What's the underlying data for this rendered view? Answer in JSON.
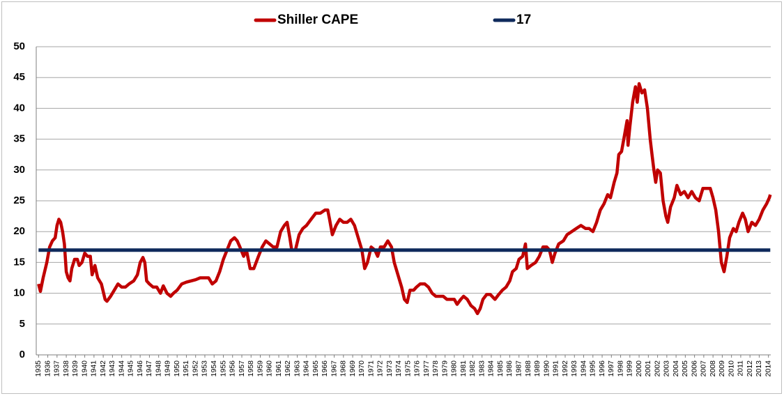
{
  "chart_data": {
    "type": "line",
    "series": [
      {
        "name": "Shiller CAPE",
        "color": "#c00000",
        "x": [
          1935.0,
          1935.2,
          1935.5,
          1935.9,
          1936.2,
          1936.5,
          1936.8,
          1937.0,
          1937.2,
          1937.4,
          1937.6,
          1937.8,
          1938.0,
          1938.2,
          1938.4,
          1938.6,
          1938.9,
          1939.2,
          1939.4,
          1939.7,
          1940.0,
          1940.3,
          1940.6,
          1940.8,
          1941.1,
          1941.4,
          1941.8,
          1942.2,
          1942.4,
          1942.8,
          1943.2,
          1943.6,
          1944.0,
          1944.4,
          1944.8,
          1945.3,
          1945.7,
          1946.0,
          1946.3,
          1946.5,
          1946.7,
          1947.0,
          1947.4,
          1947.8,
          1948.2,
          1948.5,
          1948.9,
          1949.3,
          1949.6,
          1950.0,
          1950.5,
          1951.0,
          1951.5,
          1952.0,
          1952.5,
          1953.0,
          1953.4,
          1953.8,
          1954.2,
          1954.6,
          1955.0,
          1955.4,
          1955.8,
          1956.2,
          1956.5,
          1956.8,
          1957.2,
          1957.5,
          1957.9,
          1958.3,
          1958.8,
          1959.2,
          1959.6,
          1960.0,
          1960.4,
          1960.8,
          1961.2,
          1961.6,
          1961.9,
          1962.2,
          1962.4,
          1962.8,
          1963.2,
          1963.6,
          1964.0,
          1964.5,
          1965.0,
          1965.5,
          1966.0,
          1966.3,
          1966.5,
          1966.8,
          1967.2,
          1967.6,
          1968.0,
          1968.4,
          1968.8,
          1969.2,
          1969.6,
          1970.0,
          1970.3,
          1970.6,
          1971.0,
          1971.4,
          1971.7,
          1972.0,
          1972.4,
          1972.8,
          1973.2,
          1973.5,
          1973.9,
          1974.3,
          1974.6,
          1974.9,
          1975.2,
          1975.6,
          1975.9,
          1976.3,
          1976.8,
          1977.2,
          1977.6,
          1978.0,
          1978.4,
          1978.8,
          1979.2,
          1979.6,
          1980.0,
          1980.3,
          1980.7,
          1981.0,
          1981.4,
          1981.8,
          1982.2,
          1982.5,
          1982.8,
          1983.1,
          1983.5,
          1983.9,
          1984.4,
          1984.8,
          1985.2,
          1985.6,
          1986.0,
          1986.3,
          1986.7,
          1987.0,
          1987.4,
          1987.7,
          1987.9,
          1988.3,
          1988.8,
          1989.2,
          1989.6,
          1990.0,
          1990.3,
          1990.6,
          1990.9,
          1991.3,
          1991.8,
          1992.2,
          1992.7,
          1993.2,
          1993.7,
          1994.2,
          1994.6,
          1995.0,
          1995.4,
          1995.8,
          1996.2,
          1996.6,
          1996.9,
          1997.3,
          1997.6,
          1997.8,
          1998.1,
          1998.4,
          1998.7,
          1998.8,
          1999.0,
          1999.3,
          1999.6,
          1999.8,
          2000.0,
          2000.3,
          2000.6,
          2000.9,
          2001.2,
          2001.4,
          2001.6,
          2001.8,
          2002.0,
          2002.3,
          2002.6,
          2002.9,
          2003.1,
          2003.4,
          2003.8,
          2004.1,
          2004.5,
          2004.9,
          2005.3,
          2005.7,
          2006.1,
          2006.5,
          2006.9,
          2007.3,
          2007.7,
          2008.0,
          2008.3,
          2008.6,
          2008.9,
          2009.2,
          2009.5,
          2009.8,
          2010.2,
          2010.5,
          2010.8,
          2011.2,
          2011.5,
          2011.8,
          2012.2,
          2012.6,
          2013.0,
          2013.4,
          2013.8,
          2014.1,
          2014.2
        ],
        "values": [
          11.5,
          10.3,
          12.5,
          15,
          17.5,
          18.5,
          19,
          21,
          22,
          21.5,
          20,
          18,
          13.5,
          12.5,
          12,
          14,
          15.5,
          15.5,
          14.5,
          15,
          16.5,
          16,
          16,
          13,
          14.5,
          12.5,
          11.5,
          9,
          8.7,
          9.5,
          10.5,
          11.5,
          11,
          11,
          11.5,
          12,
          13,
          15,
          15.8,
          15,
          12,
          11.5,
          11,
          11,
          10,
          11.2,
          10,
          9.5,
          10,
          10.5,
          11.5,
          11.8,
          12,
          12.2,
          12.5,
          12.5,
          12.5,
          11.5,
          12,
          13.5,
          15.5,
          17,
          18.5,
          19,
          18.5,
          17.5,
          16,
          17,
          14,
          14,
          16,
          17.5,
          18.5,
          18,
          17.5,
          17.5,
          20,
          21,
          21.5,
          19,
          17,
          17,
          19.5,
          20.5,
          21,
          22,
          23,
          23,
          23.5,
          23.5,
          22,
          19.5,
          21,
          22,
          21.5,
          21.5,
          22,
          21,
          19,
          17,
          14,
          15,
          17.5,
          17,
          16,
          17.5,
          17.5,
          18.5,
          17.5,
          15,
          13,
          11,
          9,
          8.5,
          10.5,
          10.5,
          11,
          11.5,
          11.5,
          11,
          10,
          9.5,
          9.5,
          9.5,
          9,
          9,
          9,
          8.2,
          9,
          9.5,
          9,
          8,
          7.5,
          6.7,
          7.5,
          9,
          9.8,
          9.8,
          9,
          9.8,
          10.5,
          11,
          12,
          13.5,
          14,
          15.5,
          16,
          18,
          14,
          14.5,
          15,
          16,
          17.5,
          17.5,
          17,
          15,
          16.5,
          18,
          18.5,
          19.5,
          20,
          20.5,
          21,
          20.5,
          20.5,
          20,
          21.5,
          23.5,
          24.5,
          26,
          25.5,
          28,
          29.5,
          32.5,
          33,
          35.5,
          38,
          34,
          37,
          41,
          43.5,
          41,
          44,
          42.5,
          43,
          40,
          35,
          32.5,
          30,
          28,
          30,
          29.5,
          25,
          22.5,
          21.5,
          24,
          25.5,
          27.5,
          26,
          26.5,
          25.5,
          26.5,
          25.5,
          25,
          27,
          27,
          27,
          25.5,
          23.5,
          20,
          15,
          13.5,
          16,
          19,
          20.5,
          20,
          21.5,
          23,
          22,
          20,
          21.5,
          21,
          22,
          23.5,
          24.5,
          25.5,
          26
        ]
      },
      {
        "name": "17",
        "color": "#0f2a5c",
        "x": [
          1935.0,
          2014.2
        ],
        "values": [
          17,
          17
        ]
      }
    ],
    "ylim": [
      0,
      50
    ],
    "yticks": [
      0,
      5,
      10,
      15,
      20,
      25,
      30,
      35,
      40,
      45,
      50
    ],
    "xlim": [
      1934.75,
      2014.25
    ],
    "xticks": [
      1935,
      1936,
      1937,
      1938,
      1939,
      1940,
      1941,
      1942,
      1943,
      1944,
      1945,
      1946,
      1947,
      1948,
      1949,
      1950,
      1951,
      1952,
      1953,
      1954,
      1955,
      1956,
      1957,
      1958,
      1959,
      1960,
      1961,
      1962,
      1963,
      1964,
      1965,
      1966,
      1967,
      1968,
      1969,
      1970,
      1971,
      1972,
      1973,
      1974,
      1975,
      1976,
      1977,
      1978,
      1979,
      1980,
      1981,
      1982,
      1983,
      1984,
      1985,
      1986,
      1987,
      1988,
      1989,
      1990,
      1991,
      1992,
      1993,
      1994,
      1995,
      1996,
      1997,
      1998,
      1999,
      2000,
      2001,
      2002,
      2003,
      2004,
      2005,
      2006,
      2007,
      2008,
      2009,
      2010,
      2011,
      2012,
      2013,
      2014
    ],
    "grid": true,
    "legend": "top"
  }
}
